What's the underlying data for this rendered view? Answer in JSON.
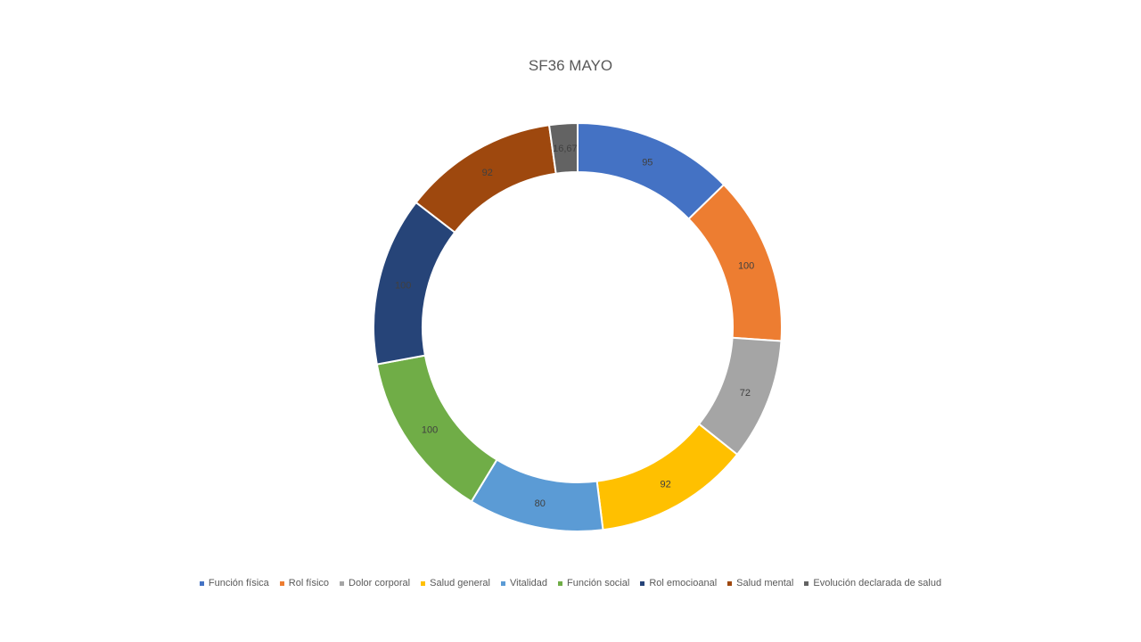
{
  "chart_data": {
    "type": "pie",
    "variant": "doughnut",
    "title": "SF36 MAYO",
    "legend_position": "bottom",
    "categories": [
      "Función física",
      "Rol físico",
      "Dolor corporal",
      "Salud general",
      "Vitalidad",
      "Función social",
      "Rol emocioanal",
      "Salud mental",
      "Evolución declarada de salud"
    ],
    "values": [
      95,
      100,
      72,
      92,
      80,
      100,
      100,
      92,
      16.67
    ],
    "data_labels": [
      "95",
      "100",
      "72",
      "92",
      "80",
      "100",
      "100",
      "92",
      "16,67"
    ],
    "colors": [
      "#4472C4",
      "#ED7D31",
      "#A5A5A5",
      "#FFC000",
      "#5B9BD5",
      "#70AD47",
      "#264478",
      "#9E480E",
      "#636363"
    ]
  }
}
